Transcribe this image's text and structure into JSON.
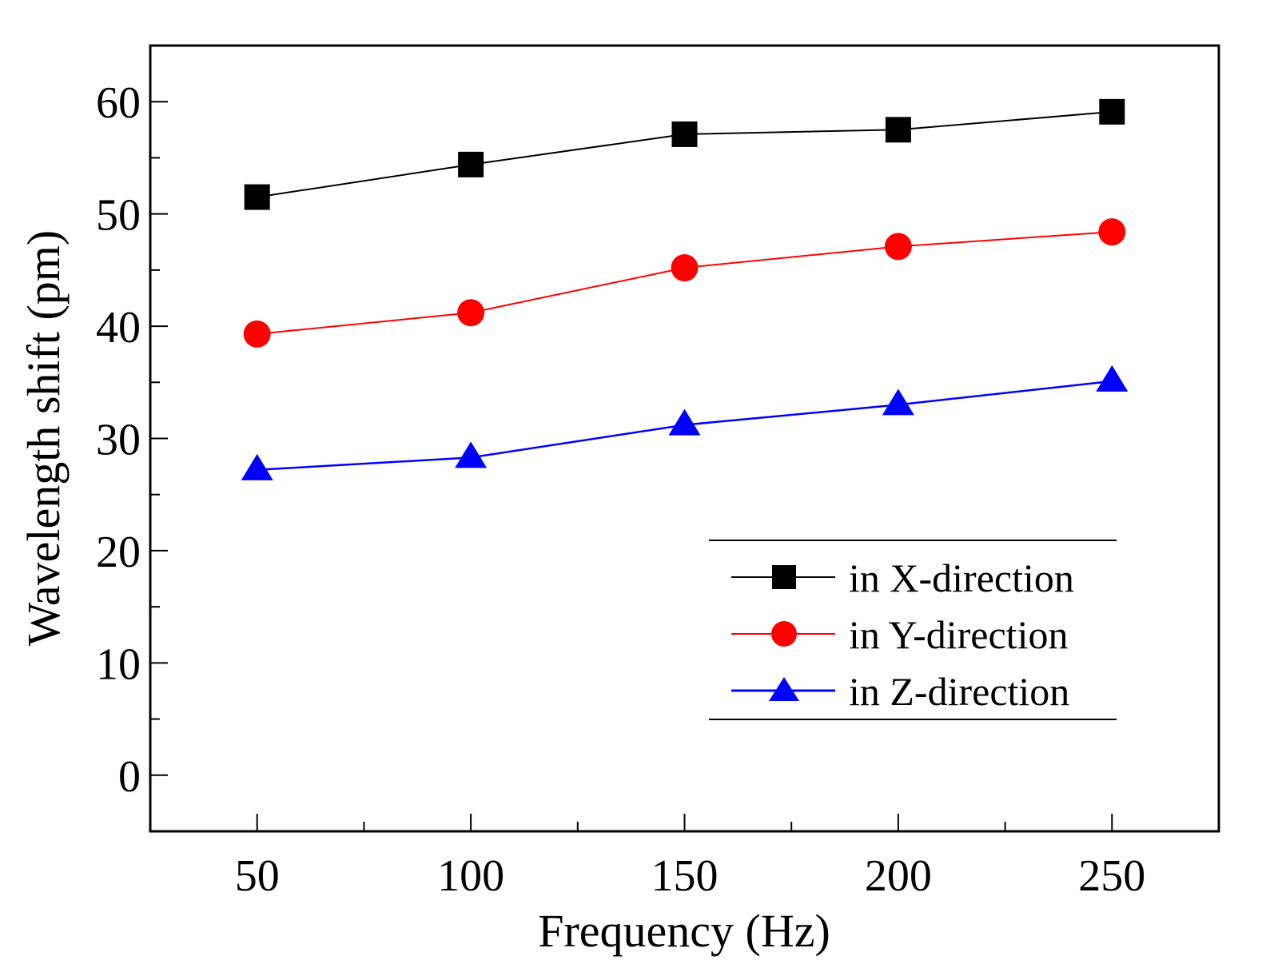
{
  "chart_data": {
    "type": "line",
    "title": "",
    "xlabel": "Frequency (Hz)",
    "ylabel": "Wavelength shift (pm)",
    "x": [
      50,
      100,
      150,
      200,
      250
    ],
    "xlim": [
      25,
      275
    ],
    "ylim": [
      -5,
      65
    ],
    "xticks": [
      50,
      100,
      150,
      200,
      250
    ],
    "xtick_labels": [
      "50",
      "100",
      "150",
      "200",
      "250"
    ],
    "xminor": [
      75,
      125,
      175,
      225
    ],
    "yticks": [
      0,
      10,
      20,
      30,
      40,
      50,
      60
    ],
    "ytick_labels": [
      "0",
      "10",
      "20",
      "30",
      "40",
      "50",
      "60"
    ],
    "yminor": [
      5,
      15,
      25,
      35,
      45,
      55
    ],
    "grid": false,
    "legend_position": "lower-right",
    "series": [
      {
        "name": "in X-direction",
        "color": "#000000",
        "marker": "square",
        "values": [
          51.5,
          54.4,
          57.1,
          57.5,
          59.1
        ]
      },
      {
        "name": "in Y-direction",
        "color": "#ff0000",
        "marker": "circle",
        "values": [
          39.3,
          41.2,
          45.2,
          47.1,
          48.4
        ]
      },
      {
        "name": "in Z-direction",
        "color": "#0000ff",
        "marker": "triangle",
        "values": [
          27.2,
          28.3,
          31.2,
          33.0,
          35.1
        ]
      }
    ]
  }
}
